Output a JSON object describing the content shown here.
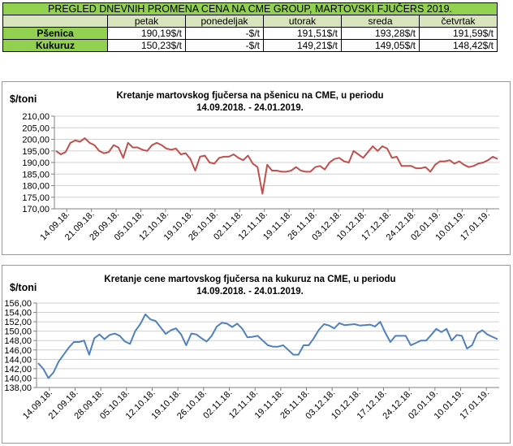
{
  "table": {
    "title": "PREGLED DNEVNIH PROMENA CENA NA CME GROUP,  MARTOVSKI  FJUČERS 2019.",
    "days": [
      "petak",
      "ponedeljak",
      "utorak",
      "sreda",
      "četvrtak"
    ],
    "rows": [
      {
        "label": "Pšenica",
        "values": [
          "190,19$/t",
          "-$/t",
          "191,51$/t",
          "193,28$/t",
          "191,59$/t"
        ]
      },
      {
        "label": "Kukuruz",
        "values": [
          "150,23$/t",
          "-$/t",
          "149,21$/t",
          "149,05$/t",
          "148,42$/t"
        ]
      }
    ]
  },
  "chart_data": [
    {
      "type": "line",
      "title": "Kretanje martovskog fjučersa na  pšenicu na CME, u periodu",
      "subtitle": "14.09.2018. - 24.01.2019.",
      "ylabel": "$/toni",
      "ylim": [
        170,
        210
      ],
      "yticks": [
        "210,00",
        "205,00",
        "200,00",
        "195,00",
        "190,00",
        "185,00",
        "180,00",
        "175,00",
        "170,00"
      ],
      "x_ticks": [
        "14.09.18.",
        "21.09.18.",
        "28.09.18.",
        "05.10.18.",
        "12.10.18.",
        "19.10.18.",
        "26.10.18.",
        "02.11.18.",
        "12.11.18.",
        "19.11.18.",
        "26.11.18.",
        "03.12.18.",
        "10.12.18.",
        "17.12.18.",
        "24.12.18.",
        "02.01.19.",
        "10.01.19.",
        "17.01.19."
      ],
      "color": "#c0504d",
      "grid": true,
      "values": [
        195,
        193.5,
        194.5,
        198.5,
        199.5,
        199,
        200.5,
        198.5,
        197.5,
        195,
        194,
        194.5,
        197.5,
        196.5,
        192,
        198.5,
        196.5,
        196.5,
        195.5,
        195,
        197.5,
        198.5,
        197.5,
        196,
        195.5,
        196,
        193.5,
        194,
        191.5,
        186.5,
        192.5,
        193,
        190,
        189.5,
        192,
        192.5,
        192.5,
        193.5,
        192,
        191,
        193,
        189.5,
        188,
        176.5,
        189,
        186.5,
        186.5,
        186,
        186,
        186.5,
        188,
        186.5,
        186,
        186,
        188,
        188.5,
        187,
        190,
        191.5,
        192,
        190.5,
        190,
        195,
        193.5,
        192,
        194.5,
        197,
        195,
        197,
        196,
        192,
        192.5,
        188.5,
        188.5,
        188.5,
        187.5,
        187.5,
        188,
        186,
        189,
        190.5,
        190.5,
        191,
        189.5,
        190.5,
        189,
        188,
        188.5,
        189.5,
        190,
        191,
        192.5,
        191.5
      ]
    },
    {
      "type": "line",
      "title": "Kretanje cene martovskog fjučersa na  kukuruz na CME, u periodu",
      "subtitle": "14.09.2018. - 24.01.2019.",
      "ylabel": "$/toni",
      "ylim": [
        138,
        156
      ],
      "yticks": [
        "156,00",
        "154,00",
        "152,00",
        "150,00",
        "148,00",
        "146,00",
        "144,00",
        "142,00",
        "140,00",
        "138,00"
      ],
      "x_ticks": [
        "14.09.18.",
        "21.09.18.",
        "28.09.18.",
        "05.10.18.",
        "12.10.18.",
        "19.10.18.",
        "26.10.18.",
        "02.11.18.",
        "12.11.18.",
        "19.11.18.",
        "26.11.18.",
        "03.12.18.",
        "10.12.18.",
        "17.12.18.",
        "24.12.18.",
        "02.01.19.",
        "10.01.19.",
        "17.01.19."
      ],
      "color": "#4f81bd",
      "grid": true,
      "values": [
        143.2,
        142,
        140,
        141.2,
        143.5,
        145,
        146.5,
        147.7,
        147.7,
        148,
        145,
        148.5,
        149.3,
        148.3,
        149.2,
        149.5,
        149,
        147.8,
        147.3,
        150,
        151.5,
        153.6,
        152.5,
        152.2,
        150.8,
        149.4,
        150.2,
        150.6,
        149.3,
        147,
        149.5,
        149.3,
        148.5,
        147.8,
        149,
        151,
        151.8,
        151.6,
        150.9,
        151.6,
        150.5,
        148.7,
        148.8,
        149,
        148,
        147,
        146.7,
        146.7,
        147,
        146,
        145,
        145,
        147,
        147,
        148.5,
        150.3,
        151.5,
        151.2,
        150.6,
        151.7,
        151.3,
        151.4,
        151.5,
        151.2,
        151.3,
        151.4,
        151,
        152,
        149.7,
        147.7,
        149,
        149,
        149,
        147,
        147.5,
        148,
        148,
        149.2,
        150.5,
        149.8,
        150.5,
        148,
        149.2,
        149,
        146.3,
        147,
        149.5,
        150.2,
        149.3,
        148.8,
        148.3
      ]
    }
  ]
}
